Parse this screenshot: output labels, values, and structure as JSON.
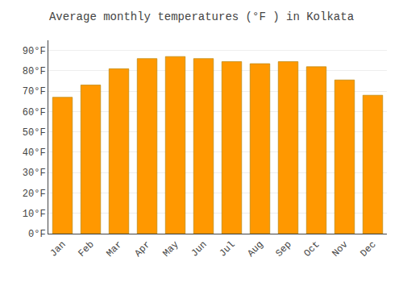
{
  "chart_data": {
    "type": "bar",
    "title": "Average monthly temperatures (°F ) in Kolkata",
    "categories": [
      "Jan",
      "Feb",
      "Mar",
      "Apr",
      "May",
      "Jun",
      "Jul",
      "Aug",
      "Sep",
      "Oct",
      "Nov",
      "Dec"
    ],
    "values": [
      67,
      73,
      81,
      86,
      87,
      86,
      84.5,
      83.5,
      84.5,
      82,
      75.5,
      68
    ],
    "color": "#FF9800",
    "ylim": [
      0,
      95
    ],
    "yticks": [
      {
        "value": 0,
        "label": "0°F"
      },
      {
        "value": 10,
        "label": "10°F"
      },
      {
        "value": 20,
        "label": "20°F"
      },
      {
        "value": 30,
        "label": "30°F"
      },
      {
        "value": 40,
        "label": "40°F"
      },
      {
        "value": 50,
        "label": "50°F"
      },
      {
        "value": 60,
        "label": "60°F"
      },
      {
        "value": 70,
        "label": "70°F"
      },
      {
        "value": 80,
        "label": "80°F"
      },
      {
        "value": 90,
        "label": "90°F"
      }
    ],
    "grid": true
  }
}
